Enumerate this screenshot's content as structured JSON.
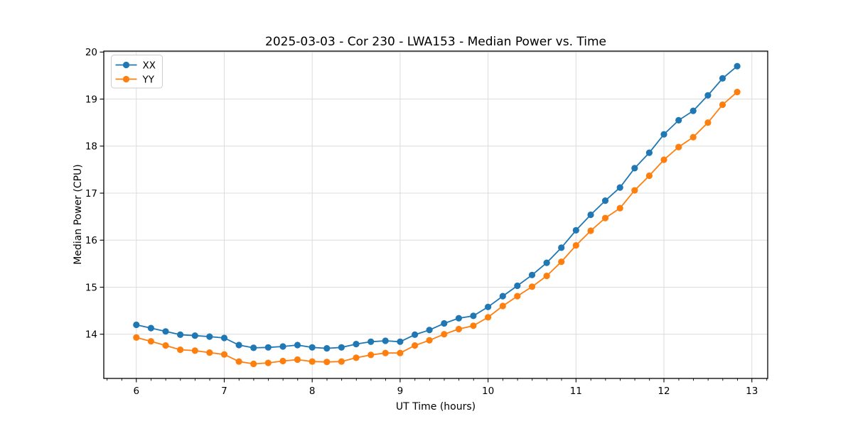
{
  "chart_data": {
    "type": "line",
    "title": "2025-03-03 - Cor 230 - LWA153 - Median Power vs. Time",
    "xlabel": "UT Time (hours)",
    "ylabel": "Median Power (CPU)",
    "xlim": [
      5.63,
      13.18
    ],
    "ylim": [
      13.06,
      20.02
    ],
    "xticks": [
      6,
      7,
      8,
      9,
      10,
      11,
      12,
      13
    ],
    "yticks": [
      14,
      15,
      16,
      17,
      18,
      19,
      20
    ],
    "x_minor_step": 0.1667,
    "grid": true,
    "legend_position": "upper-left",
    "marker": "circle",
    "x": [
      6,
      6.167,
      6.333,
      6.5,
      6.667,
      6.833,
      7,
      7.167,
      7.333,
      7.5,
      7.667,
      7.833,
      8,
      8.167,
      8.333,
      8.5,
      8.667,
      8.833,
      9,
      9.167,
      9.333,
      9.5,
      9.667,
      9.833,
      10,
      10.167,
      10.333,
      10.5,
      10.667,
      10.833,
      11,
      11.167,
      11.333,
      11.5,
      11.667,
      11.833,
      12,
      12.167,
      12.333,
      12.5,
      12.667,
      12.833
    ],
    "series": [
      {
        "name": "XX",
        "color": "#1f77b4",
        "values": [
          14.2,
          14.13,
          14.06,
          13.99,
          13.97,
          13.95,
          13.92,
          13.77,
          13.71,
          13.72,
          13.74,
          13.77,
          13.72,
          13.7,
          13.72,
          13.79,
          13.84,
          13.86,
          13.84,
          13.99,
          14.09,
          14.23,
          14.34,
          14.39,
          14.58,
          14.81,
          15.03,
          15.26,
          15.52,
          15.84,
          16.21,
          16.54,
          16.84,
          17.12,
          17.53,
          17.86,
          18.25,
          18.55,
          18.75,
          19.08,
          19.44,
          19.7
        ]
      },
      {
        "name": "YY",
        "color": "#ff7f0e",
        "values": [
          13.93,
          13.85,
          13.76,
          13.67,
          13.65,
          13.61,
          13.57,
          13.42,
          13.37,
          13.39,
          13.43,
          13.46,
          13.42,
          13.41,
          13.42,
          13.5,
          13.56,
          13.6,
          13.6,
          13.76,
          13.87,
          14.0,
          14.11,
          14.18,
          14.36,
          14.6,
          14.81,
          15.01,
          15.24,
          15.54,
          15.89,
          16.2,
          16.47,
          16.68,
          17.06,
          17.37,
          17.71,
          17.98,
          18.19,
          18.5,
          18.88,
          19.15
        ]
      }
    ]
  }
}
